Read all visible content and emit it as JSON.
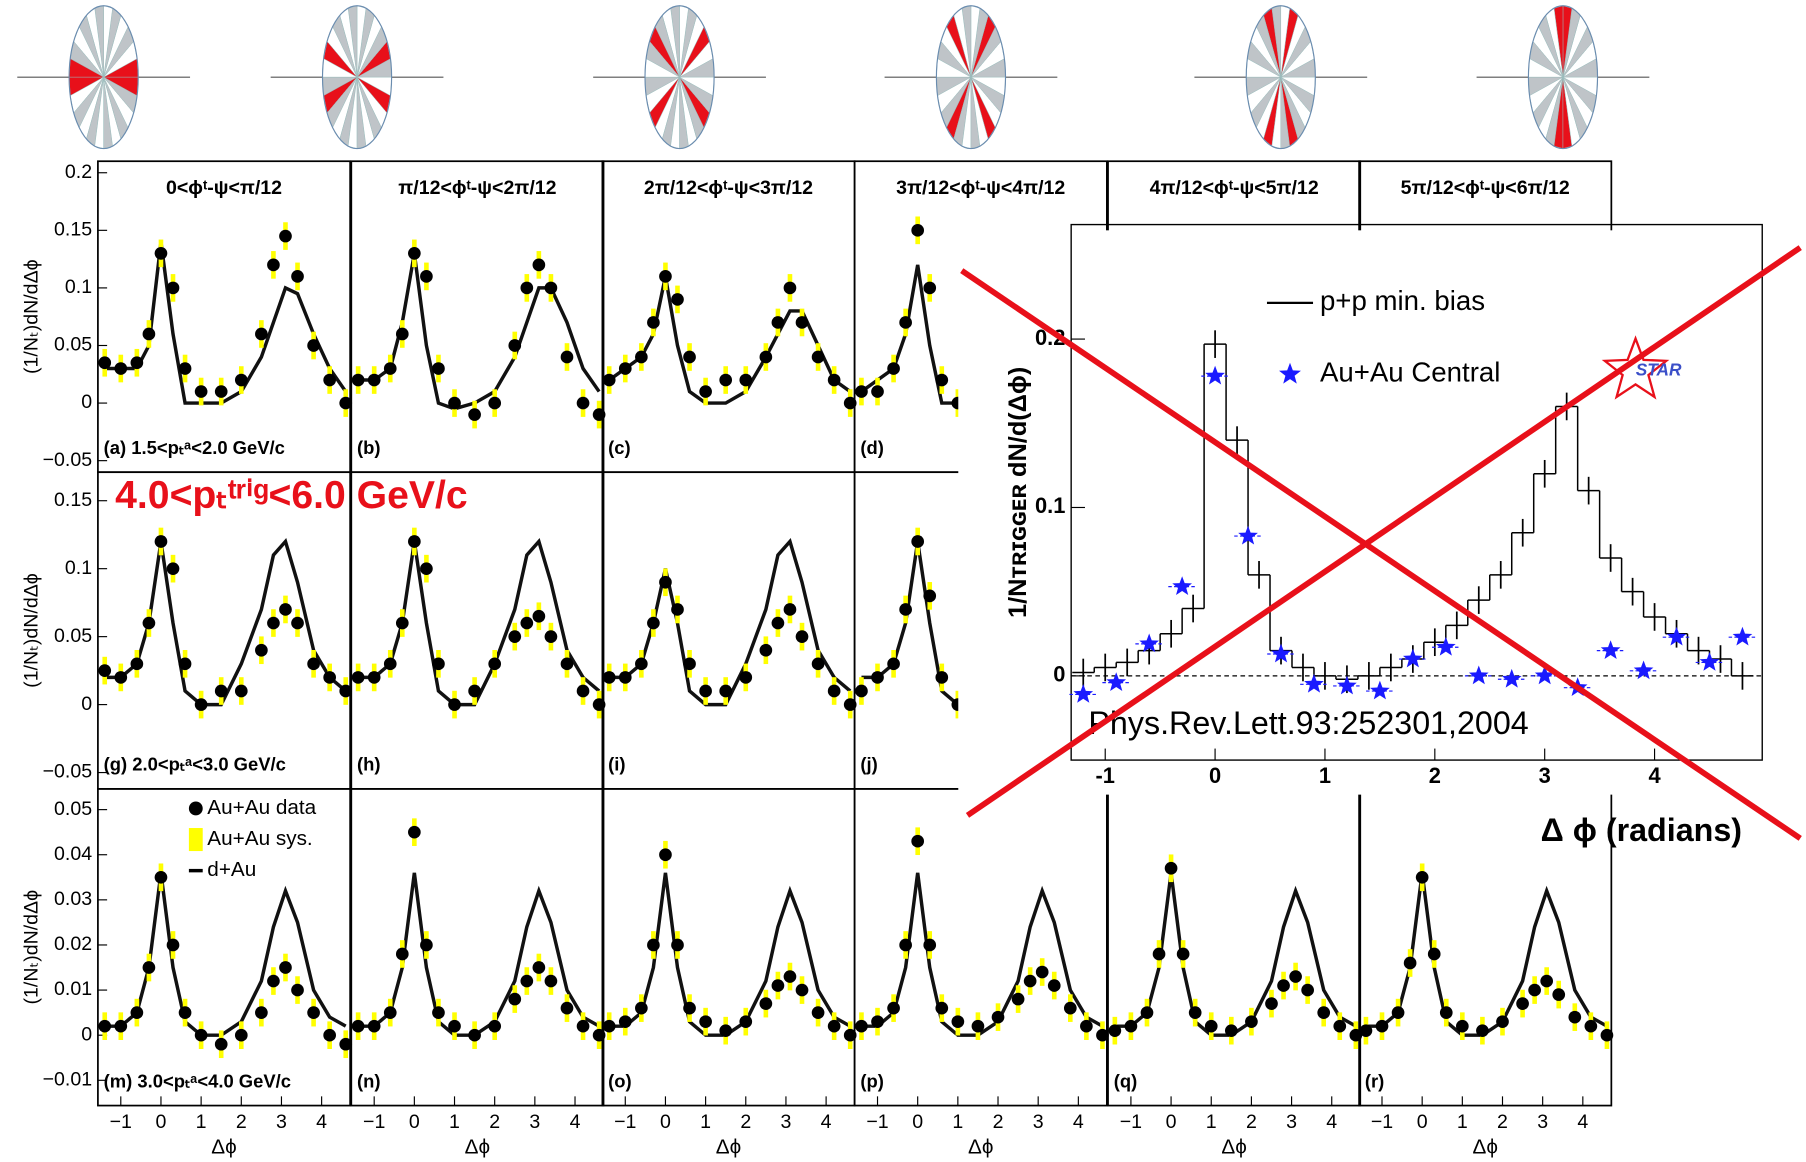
{
  "chart_data": [
    {
      "type": "panel-row",
      "ylabel": "(1/Nₜ)dN/dΔϕ",
      "xlim": [
        -1.57,
        4.71
      ],
      "ylim": [
        -0.06,
        0.21
      ],
      "yticks": [
        {
          "value": -0.05,
          "label": "−0.05"
        },
        0,
        0.05,
        0.1,
        0.15,
        0.2
      ],
      "x": [
        -1.4,
        -1.0,
        -0.6,
        -0.3,
        0,
        0.3,
        0.6,
        1.0,
        1.5,
        2.0,
        2.5,
        2.8,
        3.1,
        3.4,
        3.8,
        4.2,
        4.6
      ],
      "panels": [
        {
          "title": "0<ϕᵗ-ψ<π/12",
          "label": "(a) 1.5<pₜᵃ<2.0 GeV/c",
          "values": [
            0.035,
            0.03,
            0.035,
            0.06,
            0.13,
            0.1,
            0.03,
            0.01,
            0.01,
            0.02,
            0.06,
            0.12,
            0.145,
            0.11,
            0.05,
            0.02,
            0.0
          ],
          "dAu": [
            0.03,
            0.03,
            0.03,
            0.05,
            0.14,
            0.06,
            0.0,
            0.0,
            0.0,
            0.01,
            0.04,
            0.07,
            0.1,
            0.095,
            0.06,
            0.03,
            0.01
          ]
        },
        {
          "title": "π/12<ϕᵗ-ψ<2π/12",
          "label": "(b)",
          "values": [
            0.02,
            0.02,
            0.03,
            0.06,
            0.13,
            0.11,
            0.03,
            0.0,
            -0.01,
            0.0,
            0.05,
            0.1,
            0.12,
            0.1,
            0.04,
            0.0,
            -0.01
          ],
          "dAu": [
            0.02,
            0.02,
            0.03,
            0.07,
            0.13,
            0.05,
            0.0,
            -0.005,
            0.0,
            0.01,
            0.04,
            0.07,
            0.1,
            0.1,
            0.07,
            0.03,
            0.01
          ]
        },
        {
          "title": "2π/12<ϕᵗ-ψ<3π/12",
          "label": "(c)",
          "values": [
            0.02,
            0.03,
            0.04,
            0.07,
            0.11,
            0.09,
            0.04,
            0.01,
            0.02,
            0.02,
            0.04,
            0.07,
            0.1,
            0.07,
            0.04,
            0.02,
            0.0
          ],
          "dAu": [
            0.02,
            0.03,
            0.04,
            0.06,
            0.11,
            0.05,
            0.01,
            0.0,
            0.0,
            0.01,
            0.04,
            0.06,
            0.08,
            0.08,
            0.05,
            0.02,
            0.01
          ]
        },
        {
          "title": "3π/12<ϕᵗ-ψ<4π/12",
          "label": "(d)",
          "values": [
            0.01,
            0.01,
            0.03,
            0.07,
            0.15,
            0.1,
            0.02,
            0.0,
            0.01,
            0.02,
            0.04,
            0.06,
            0.08,
            0.06,
            0.03,
            0.01,
            0.0
          ],
          "dAu": [
            0.01,
            0.02,
            0.03,
            0.06,
            0.12,
            0.05,
            0.0,
            0.0,
            0.0,
            0.01,
            0.04,
            0.07,
            0.09,
            0.08,
            0.05,
            0.02,
            0.01
          ]
        },
        {
          "title": "4π/12<ϕᵗ-ψ<5π/12"
        },
        {
          "title": "5π/12<ϕᵗ-ψ<6π/12"
        }
      ]
    },
    {
      "type": "panel-row",
      "ylabel": "(1/Nₜ)dN/dΔϕ",
      "xlim": [
        -1.57,
        4.71
      ],
      "ylim": [
        -0.062,
        0.171
      ],
      "yticks": [
        {
          "value": -0.05,
          "label": "−0.05"
        },
        0,
        0.05,
        0.1,
        0.15
      ],
      "annotation": "4.0<pₜᵗʳⁱᵍ<6.0 GeV/c",
      "x": [
        -1.4,
        -1.0,
        -0.6,
        -0.3,
        0,
        0.3,
        0.6,
        1.0,
        1.5,
        2.0,
        2.5,
        2.8,
        3.1,
        3.4,
        3.8,
        4.2,
        4.6
      ],
      "panels": [
        {
          "label": "(g) 2.0<pₜᵃ<3.0 GeV/c",
          "values": [
            0.025,
            0.02,
            0.03,
            0.06,
            0.12,
            0.1,
            0.03,
            0.0,
            0.01,
            0.01,
            0.04,
            0.06,
            0.07,
            0.06,
            0.03,
            0.02,
            0.01
          ],
          "dAu": [
            0.02,
            0.02,
            0.03,
            0.06,
            0.12,
            0.06,
            0.01,
            0.0,
            0.0,
            0.03,
            0.07,
            0.11,
            0.12,
            0.09,
            0.04,
            0.02,
            0.01
          ]
        },
        {
          "label": "(h)",
          "values": [
            0.02,
            0.02,
            0.03,
            0.06,
            0.12,
            0.1,
            0.03,
            0.0,
            0.01,
            0.03,
            0.05,
            0.06,
            0.065,
            0.05,
            0.03,
            0.01,
            0.0
          ],
          "dAu": [
            0.02,
            0.02,
            0.03,
            0.06,
            0.12,
            0.06,
            0.01,
            0.0,
            0.0,
            0.03,
            0.07,
            0.11,
            0.12,
            0.09,
            0.04,
            0.02,
            0.01
          ]
        },
        {
          "label": "(i)",
          "values": [
            0.02,
            0.02,
            0.03,
            0.06,
            0.09,
            0.07,
            0.03,
            0.01,
            0.01,
            0.02,
            0.04,
            0.06,
            0.07,
            0.05,
            0.03,
            0.01,
            0.0
          ],
          "dAu": [
            0.02,
            0.02,
            0.03,
            0.06,
            0.1,
            0.06,
            0.01,
            0.0,
            0.0,
            0.03,
            0.07,
            0.11,
            0.12,
            0.09,
            0.04,
            0.02,
            0.01
          ]
        },
        {
          "label": "(j)",
          "values": [
            0.01,
            0.02,
            0.03,
            0.07,
            0.12,
            0.08,
            0.02,
            0.0,
            0.01,
            0.02,
            0.04,
            0.06,
            0.07,
            0.05,
            0.03,
            0.01,
            0.0
          ],
          "dAu": [
            0.02,
            0.02,
            0.03,
            0.06,
            0.12,
            0.06,
            0.01,
            0.0,
            0.0,
            0.03,
            0.07,
            0.11,
            0.12,
            0.09,
            0.04,
            0.02,
            0.01
          ]
        }
      ]
    },
    {
      "type": "panel-row",
      "ylabel": "(1/Nₜ)dN/dΔϕ",
      "xlabel": "Δϕ",
      "xlim": [
        -1.57,
        4.71
      ],
      "ylim": [
        -0.0156,
        0.0546
      ],
      "yticks": [
        {
          "value": -0.01,
          "label": "−0.01"
        },
        0,
        0.01,
        0.02,
        0.03,
        0.04,
        0.05
      ],
      "xticks": [
        {
          "value": -1,
          "label": "−1"
        },
        0,
        1,
        2,
        3,
        4
      ],
      "legend": [
        {
          "name": "Au+Au data",
          "color": "#000000"
        },
        {
          "name": "Au+Au sys.",
          "color": "#ffff00"
        },
        {
          "name": "d+Au",
          "color": "#000000"
        }
      ],
      "x": [
        -1.4,
        -1.0,
        -0.6,
        -0.3,
        0,
        0.3,
        0.6,
        1.0,
        1.5,
        2.0,
        2.5,
        2.8,
        3.1,
        3.4,
        3.8,
        4.2,
        4.6
      ],
      "panels": [
        {
          "label": "(m) 3.0<pₜᵃ<4.0 GeV/c",
          "values": [
            0.002,
            0.002,
            0.005,
            0.015,
            0.035,
            0.02,
            0.005,
            0.0,
            -0.002,
            0.0,
            0.005,
            0.012,
            0.015,
            0.01,
            0.005,
            0.0,
            -0.002
          ],
          "dAu": [
            0.002,
            0.002,
            0.005,
            0.015,
            0.036,
            0.015,
            0.003,
            0.0,
            0.0,
            0.003,
            0.012,
            0.024,
            0.032,
            0.025,
            0.01,
            0.004,
            0.002
          ]
        },
        {
          "label": "(n)",
          "values": [
            0.002,
            0.002,
            0.005,
            0.018,
            0.045,
            0.02,
            0.005,
            0.002,
            0.0,
            0.002,
            0.008,
            0.012,
            0.015,
            0.012,
            0.006,
            0.002,
            0.0
          ],
          "dAu": [
            0.002,
            0.002,
            0.005,
            0.015,
            0.036,
            0.015,
            0.003,
            0.0,
            0.0,
            0.003,
            0.012,
            0.024,
            0.032,
            0.025,
            0.01,
            0.004,
            0.002
          ]
        },
        {
          "label": "(o)",
          "values": [
            0.002,
            0.003,
            0.006,
            0.02,
            0.04,
            0.02,
            0.006,
            0.003,
            0.001,
            0.003,
            0.007,
            0.011,
            0.013,
            0.01,
            0.005,
            0.002,
            0.0
          ],
          "dAu": [
            0.002,
            0.002,
            0.005,
            0.015,
            0.036,
            0.015,
            0.003,
            0.0,
            0.0,
            0.003,
            0.012,
            0.024,
            0.032,
            0.025,
            0.01,
            0.004,
            0.002
          ]
        },
        {
          "label": "(p)",
          "values": [
            0.002,
            0.003,
            0.006,
            0.02,
            0.043,
            0.02,
            0.006,
            0.003,
            0.002,
            0.004,
            0.008,
            0.012,
            0.014,
            0.011,
            0.006,
            0.002,
            0.0
          ],
          "dAu": [
            0.002,
            0.002,
            0.005,
            0.015,
            0.036,
            0.015,
            0.003,
            0.0,
            0.0,
            0.003,
            0.012,
            0.024,
            0.032,
            0.025,
            0.01,
            0.004,
            0.002
          ]
        },
        {
          "label": "(q)",
          "values": [
            0.001,
            0.002,
            0.005,
            0.018,
            0.037,
            0.018,
            0.005,
            0.002,
            0.001,
            0.003,
            0.007,
            0.011,
            0.013,
            0.01,
            0.005,
            0.002,
            0.0
          ],
          "dAu": [
            0.002,
            0.002,
            0.005,
            0.015,
            0.036,
            0.015,
            0.003,
            0.0,
            0.0,
            0.003,
            0.012,
            0.024,
            0.032,
            0.025,
            0.01,
            0.004,
            0.002
          ]
        },
        {
          "label": "(r)",
          "values": [
            0.001,
            0.002,
            0.005,
            0.016,
            0.035,
            0.018,
            0.005,
            0.002,
            0.001,
            0.003,
            0.007,
            0.01,
            0.012,
            0.009,
            0.004,
            0.002,
            0.0
          ],
          "dAu": [
            0.002,
            0.002,
            0.005,
            0.015,
            0.036,
            0.015,
            0.003,
            0.0,
            0.0,
            0.003,
            0.012,
            0.024,
            0.032,
            0.025,
            0.01,
            0.004,
            0.002
          ]
        }
      ]
    },
    {
      "type": "inset",
      "ylabel": "1/Nᴛʀɪɢɢᴇʀ dN/d(Δϕ)",
      "xlabel": "Δ ϕ (radians)",
      "annotation": "Phys.Rev.Lett.93:252301,2004",
      "logo": "STAR",
      "xlim": [
        -1.31,
        4.98
      ],
      "ylim": [
        -0.05,
        0.268
      ],
      "xticks": [
        -1,
        0,
        1,
        2,
        3,
        4
      ],
      "yticks": [
        0,
        0.1,
        0.2
      ],
      "histogram": {
        "name": "p+p min. bias",
        "color": "#000000",
        "bins": [
          -1.3,
          -1.1,
          -0.9,
          -0.7,
          -0.5,
          -0.3,
          -0.1,
          0.1,
          0.3,
          0.5,
          0.7,
          0.9,
          1.1,
          1.3,
          1.5,
          1.7,
          1.9,
          2.1,
          2.3,
          2.5,
          2.7,
          2.9,
          3.1,
          3.3,
          3.5,
          3.7,
          3.9,
          4.1,
          4.3,
          4.5,
          4.7,
          4.9
        ],
        "values": [
          0.002,
          0.005,
          0.008,
          0.015,
          0.025,
          0.04,
          0.197,
          0.14,
          0.06,
          0.015,
          0.005,
          0.0,
          -0.002,
          0.0,
          0.005,
          0.01,
          0.02,
          0.03,
          0.045,
          0.06,
          0.085,
          0.12,
          0.16,
          0.11,
          0.07,
          0.05,
          0.035,
          0.025,
          0.015,
          0.01,
          0.0
        ]
      },
      "series": {
        "name": "Au+Au Central",
        "color": "#1a1aff",
        "x": [
          -1.2,
          -0.9,
          -0.6,
          -0.3,
          0,
          0.3,
          0.6,
          0.9,
          1.2,
          1.5,
          1.8,
          2.1,
          2.4,
          2.7,
          3.0,
          3.3,
          3.6,
          3.9,
          4.2,
          4.5,
          4.8
        ],
        "values": [
          -0.011,
          -0.004,
          0.019,
          0.053,
          0.178,
          0.083,
          0.013,
          -0.005,
          -0.006,
          -0.009,
          0.01,
          0.017,
          0.0,
          -0.002,
          0.0,
          -0.007,
          0.015,
          0.003,
          0.023,
          0.008,
          0.023
        ]
      }
    }
  ]
}
